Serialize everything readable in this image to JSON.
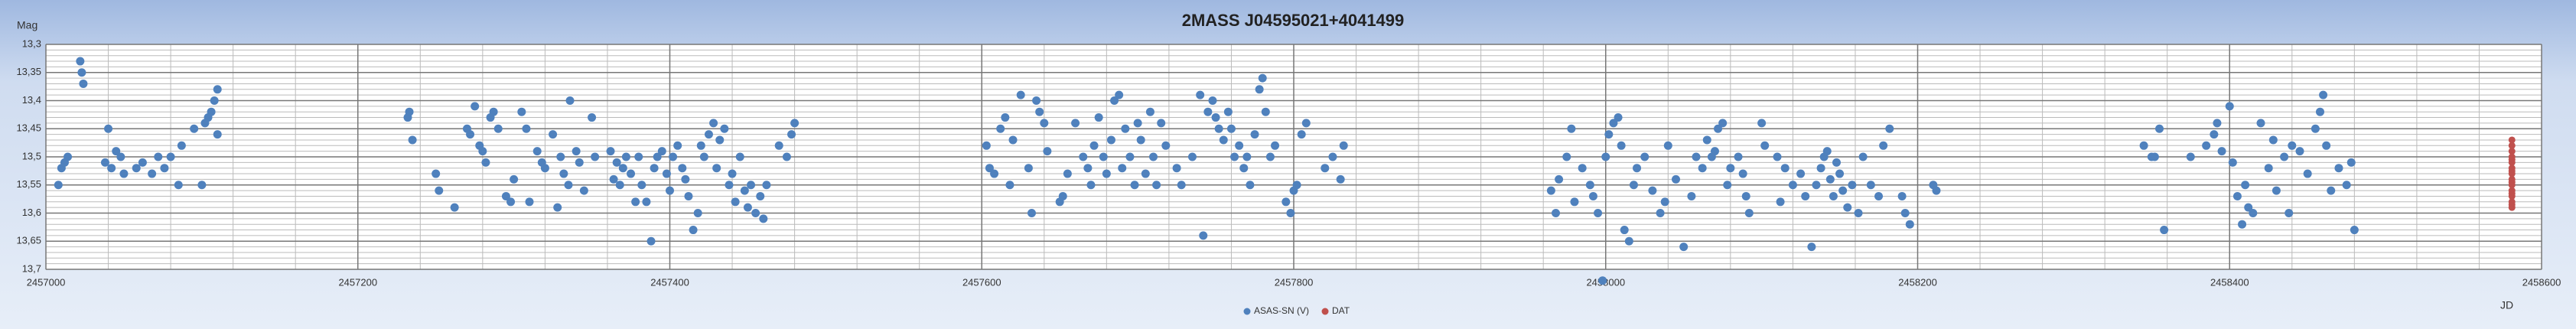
{
  "chart_data": {
    "type": "scatter",
    "title": "2MASS J04595021+4041499",
    "ylabel": "Mag",
    "xlabel": "JD",
    "y_inverted": true,
    "grid": true,
    "legend": "bottom",
    "xlim": [
      2457000,
      2458600
    ],
    "xticks": [
      2457000,
      2457200,
      2457400,
      2457600,
      2457800,
      2458000,
      2458200,
      2458400,
      2458600
    ],
    "ylim": [
      13.3,
      13.7
    ],
    "yticks": [
      {
        "value": 13.3,
        "label": "13,3"
      },
      {
        "value": 13.35,
        "label": "13,35"
      },
      {
        "value": 13.4,
        "label": "13,4"
      },
      {
        "value": 13.45,
        "label": "13,45"
      },
      {
        "value": 13.5,
        "label": "13,5"
      },
      {
        "value": 13.55,
        "label": "13,55"
      },
      {
        "value": 13.6,
        "label": "13,6"
      },
      {
        "value": 13.65,
        "label": "13,65"
      },
      {
        "value": 13.7,
        "label": "13,7"
      }
    ],
    "series": [
      {
        "name": "ASAS-SN (V)",
        "color": "#4f81bd",
        "x": [
          2457008,
          2457010,
          2457012,
          2457014,
          2457022,
          2457023,
          2457024,
          2457038,
          2457040,
          2457042,
          2457045,
          2457048,
          2457050,
          2457058,
          2457062,
          2457068,
          2457072,
          2457076,
          2457080,
          2457085,
          2457087,
          2457095,
          2457100,
          2457102,
          2457104,
          2457106,
          2457108,
          2457110,
          2457110,
          2457232,
          2457233,
          2457235,
          2457250,
          2457252,
          2457262,
          2457270,
          2457272,
          2457275,
          2457278,
          2457280,
          2457282,
          2457285,
          2457287,
          2457290,
          2457295,
          2457298,
          2457300,
          2457305,
          2457308,
          2457310,
          2457315,
          2457318,
          2457320,
          2457325,
          2457328,
          2457330,
          2457332,
          2457335,
          2457336,
          2457340,
          2457342,
          2457345,
          2457350,
          2457352,
          2457362,
          2457364,
          2457366,
          2457368,
          2457370,
          2457372,
          2457375,
          2457378,
          2457380,
          2457382,
          2457385,
          2457388,
          2457390,
          2457392,
          2457395,
          2457398,
          2457400,
          2457402,
          2457405,
          2457408,
          2457410,
          2457412,
          2457415,
          2457418,
          2457420,
          2457422,
          2457425,
          2457428,
          2457430,
          2457432,
          2457435,
          2457438,
          2457440,
          2457442,
          2457445,
          2457448,
          2457450,
          2457452,
          2457455,
          2457458,
          2457460,
          2457462,
          2457470,
          2457475,
          2457478,
          2457480,
          2457603,
          2457605,
          2457608,
          2457612,
          2457615,
          2457618,
          2457620,
          2457625,
          2457630,
          2457632,
          2457635,
          2457637,
          2457640,
          2457642,
          2457650,
          2457652,
          2457655,
          2457660,
          2457665,
          2457668,
          2457670,
          2457672,
          2457675,
          2457678,
          2457680,
          2457683,
          2457685,
          2457688,
          2457690,
          2457692,
          2457695,
          2457698,
          2457700,
          2457702,
          2457705,
          2457708,
          2457710,
          2457712,
          2457715,
          2457718,
          2457725,
          2457728,
          2457735,
          2457740,
          2457742,
          2457745,
          2457748,
          2457750,
          2457752,
          2457755,
          2457758,
          2457760,
          2457762,
          2457765,
          2457768,
          2457770,
          2457772,
          2457775,
          2457778,
          2457780,
          2457782,
          2457785,
          2457788,
          2457795,
          2457798,
          2457800,
          2457802,
          2457805,
          2457808,
          2457820,
          2457825,
          2457830,
          2457832,
          2457965,
          2457968,
          2457970,
          2457975,
          2457978,
          2457980,
          2457985,
          2457990,
          2457992,
          2457995,
          2457998,
          2458000,
          2458002,
          2458005,
          2458008,
          2458010,
          2458012,
          2458015,
          2458018,
          2458020,
          2458025,
          2458030,
          2458035,
          2458038,
          2458040,
          2458045,
          2458050,
          2458055,
          2458058,
          2458062,
          2458065,
          2458068,
          2458070,
          2458072,
          2458075,
          2458078,
          2458080,
          2458085,
          2458088,
          2458090,
          2458092,
          2458100,
          2458102,
          2458110,
          2458112,
          2458115,
          2458120,
          2458125,
          2458128,
          2458132,
          2458135,
          2458138,
          2458140,
          2458142,
          2458144,
          2458146,
          2458148,
          2458150,
          2458152,
          2458155,
          2458158,
          2458162,
          2458165,
          2458170,
          2458175,
          2458178,
          2458182,
          2458190,
          2458192,
          2458195,
          2458210,
          2458212,
          2458345,
          2458350,
          2458352,
          2458355,
          2458358,
          2458375,
          2458385,
          2458390,
          2458392,
          2458395,
          2458400,
          2458402,
          2458405,
          2458408,
          2458410,
          2458412,
          2458415,
          2458420,
          2458425,
          2458428,
          2458430,
          2458435,
          2458438,
          2458440,
          2458445,
          2458450,
          2458455,
          2458458,
          2458460,
          2458462,
          2458465,
          2458470,
          2458475,
          2458478,
          2458480
        ],
        "values": [
          13.55,
          13.52,
          13.51,
          13.5,
          13.33,
          13.35,
          13.37,
          13.51,
          13.45,
          13.52,
          13.49,
          13.5,
          13.53,
          13.52,
          13.51,
          13.53,
          13.5,
          13.52,
          13.5,
          13.55,
          13.48,
          13.45,
          13.55,
          13.44,
          13.43,
          13.42,
          13.4,
          13.38,
          13.46,
          13.43,
          13.42,
          13.47,
          13.53,
          13.56,
          13.59,
          13.45,
          13.46,
          13.41,
          13.48,
          13.49,
          13.51,
          13.43,
          13.42,
          13.45,
          13.57,
          13.58,
          13.54,
          13.42,
          13.45,
          13.58,
          13.49,
          13.51,
          13.52,
          13.46,
          13.59,
          13.5,
          13.53,
          13.55,
          13.4,
          13.49,
          13.51,
          13.56,
          13.43,
          13.5,
          13.49,
          13.54,
          13.51,
          13.55,
          13.52,
          13.5,
          13.53,
          13.58,
          13.5,
          13.55,
          13.58,
          13.65,
          13.52,
          13.5,
          13.49,
          13.53,
          13.56,
          13.5,
          13.48,
          13.52,
          13.54,
          13.57,
          13.63,
          13.6,
          13.48,
          13.5,
          13.46,
          13.44,
          13.52,
          13.47,
          13.45,
          13.55,
          13.53,
          13.58,
          13.5,
          13.56,
          13.59,
          13.55,
          13.6,
          13.57,
          13.61,
          13.55,
          13.48,
          13.5,
          13.46,
          13.44,
          13.48,
          13.52,
          13.53,
          13.45,
          13.43,
          13.55,
          13.47,
          13.39,
          13.52,
          13.6,
          13.4,
          13.42,
          13.44,
          13.49,
          13.58,
          13.57,
          13.53,
          13.44,
          13.5,
          13.52,
          13.55,
          13.48,
          13.43,
          13.5,
          13.53,
          13.47,
          13.4,
          13.39,
          13.52,
          13.45,
          13.5,
          13.55,
          13.44,
          13.47,
          13.53,
          13.42,
          13.5,
          13.55,
          13.44,
          13.48,
          13.52,
          13.55,
          13.5,
          13.39,
          13.64,
          13.42,
          13.4,
          13.43,
          13.45,
          13.47,
          13.42,
          13.45,
          13.5,
          13.48,
          13.52,
          13.5,
          13.55,
          13.46,
          13.38,
          13.36,
          13.42,
          13.5,
          13.48,
          13.58,
          13.6,
          13.56,
          13.55,
          13.46,
          13.44,
          13.52,
          13.5,
          13.54,
          13.48,
          13.56,
          13.6,
          13.54,
          13.5,
          13.45,
          13.58,
          13.52,
          13.55,
          13.57,
          13.6,
          13.72,
          13.5,
          13.46,
          13.44,
          13.43,
          13.48,
          13.63,
          13.65,
          13.55,
          13.52,
          13.5,
          13.56,
          13.6,
          13.58,
          13.48,
          13.54,
          13.66,
          13.57,
          13.5,
          13.52,
          13.47,
          13.5,
          13.49,
          13.45,
          13.44,
          13.55,
          13.52,
          13.5,
          13.53,
          13.57,
          13.6,
          13.44,
          13.48,
          13.5,
          13.58,
          13.52,
          13.55,
          13.53,
          13.57,
          13.66,
          13.55,
          13.52,
          13.5,
          13.49,
          13.54,
          13.57,
          13.51,
          13.53,
          13.56,
          13.59,
          13.55,
          13.6,
          13.5,
          13.55,
          13.57,
          13.48,
          13.45,
          13.57,
          13.6,
          13.62,
          13.55,
          13.56,
          13.48,
          13.5,
          13.5,
          13.45,
          13.63,
          13.5,
          13.48,
          13.46,
          13.44,
          13.49,
          13.41,
          13.51,
          13.57,
          13.62,
          13.55,
          13.59,
          13.6,
          13.44,
          13.52,
          13.47,
          13.56,
          13.5,
          13.6,
          13.48,
          13.49,
          13.53,
          13.45,
          13.42,
          13.39,
          13.48,
          13.56,
          13.52,
          13.55,
          13.51,
          13.63
        ]
      },
      {
        "name": "DAT",
        "color": "#c0504d",
        "x": [
          2458581,
          2458581,
          2458581,
          2458581,
          2458581,
          2458581,
          2458581,
          2458581,
          2458581,
          2458581,
          2458581,
          2458581,
          2458581,
          2458581,
          2458581,
          2458581,
          2458581,
          2458581
        ],
        "values": [
          13.47,
          13.48,
          13.49,
          13.5,
          13.505,
          13.51,
          13.52,
          13.525,
          13.53,
          13.54,
          13.545,
          13.55,
          13.56,
          13.565,
          13.57,
          13.58,
          13.585,
          13.59
        ]
      }
    ]
  }
}
